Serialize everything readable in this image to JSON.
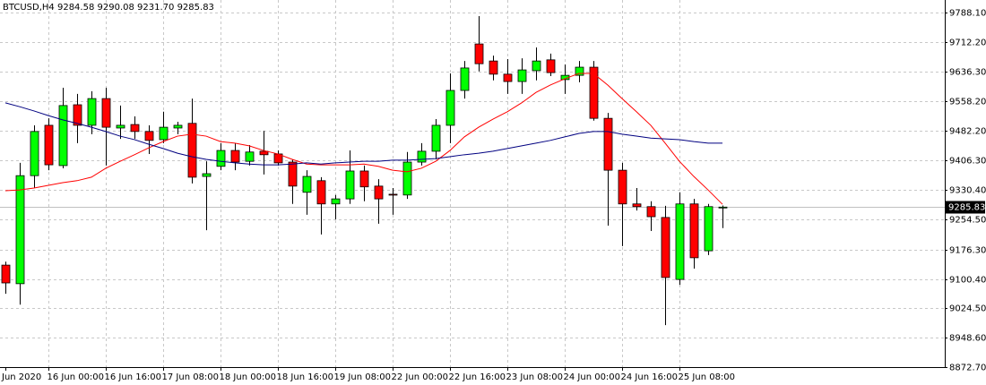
{
  "chart_data": {
    "type": "candlestick",
    "title": "BTCUSD,H4  9284.58 9290.08 9231.70 9285.83",
    "x": [
      "Jun 2020",
      null,
      null,
      "16 Jun 00:00",
      null,
      null,
      null,
      "16 Jun 16:00",
      null,
      null,
      null,
      "17 Jun 08:00",
      null,
      null,
      null,
      "18 Jun 00:00",
      null,
      null,
      null,
      "18 Jun 16:00",
      null,
      null,
      null,
      "19 Jun 08:00",
      null,
      null,
      null,
      "22 Jun 00:00",
      null,
      null,
      null,
      "22 Jun 16:00",
      null,
      null,
      null,
      "23 Jun 08:00",
      null,
      null,
      null,
      "24 Jun 00:00",
      null,
      null,
      null,
      "24 Jun 16:00",
      null,
      null,
      null,
      "25 Jun 08:00",
      null,
      null,
      null
    ],
    "open": [
      9136,
      9088,
      9367,
      9497,
      9393,
      9550,
      9497,
      9566,
      9490,
      9499,
      9481,
      9460,
      9490,
      9502,
      9365,
      9391,
      9432,
      9404,
      9430,
      9423,
      9402,
      9324,
      9354,
      9294,
      9307,
      9379,
      9340,
      9319,
      9317,
      9402,
      9430,
      9497,
      9587,
      9707,
      9663,
      9629,
      9610,
      9638,
      9666,
      9615,
      9626,
      9647,
      9515,
      9381,
      9294,
      9287,
      9259,
      9099,
      9294,
      9173,
      9284.58
    ],
    "high": [
      9145,
      9400,
      9497,
      9515,
      9594,
      9578,
      9585,
      9594,
      9548,
      9520,
      9497,
      9532,
      9506,
      9566,
      9404,
      9451,
      9451,
      9446,
      9483,
      9432,
      9409,
      9381,
      9363,
      9317,
      9432,
      9393,
      9358,
      9335,
      9428,
      9451,
      9513,
      9631,
      9663,
      9779,
      9677,
      9668,
      9670,
      9698,
      9682,
      9654,
      9663,
      9663,
      9529,
      9400,
      9335,
      9301,
      9289,
      9324,
      9307,
      9294,
      9290.08
    ],
    "low": [
      9062,
      9034,
      9335,
      9381,
      9386,
      9451,
      9474,
      9393,
      9462,
      9462,
      9423,
      9451,
      9474,
      9347,
      9226,
      9381,
      9381,
      9393,
      9370,
      9393,
      9294,
      9266,
      9215,
      9254,
      9294,
      9301,
      9243,
      9266,
      9307,
      9393,
      9409,
      9451,
      9566,
      9636,
      9613,
      9578,
      9578,
      9613,
      9624,
      9578,
      9608,
      9509,
      9238,
      9185,
      9277,
      9224,
      8981,
      9085,
      9127,
      9162,
      9231.7
    ],
    "close": [
      9090,
      9367,
      9481,
      9395,
      9548,
      9497,
      9566,
      9492,
      9497,
      9481,
      9458,
      9492,
      9497,
      9363,
      9372,
      9432,
      9402,
      9428,
      9421,
      9400,
      9340,
      9365,
      9294,
      9307,
      9379,
      9338,
      9307,
      9317,
      9402,
      9430,
      9497,
      9587,
      9645,
      9656,
      9629,
      9610,
      9640,
      9663,
      9633,
      9626,
      9647,
      9515,
      9381,
      9294,
      9287,
      9261,
      9104,
      9294,
      9155,
      9287,
      9285.83
    ],
    "up_color": "#00ff00",
    "down_color": "#ff0000",
    "series": [
      {
        "color": "#ff0000",
        "values": [
          9328,
          9330,
          9335,
          9342,
          9349,
          9354,
          9363,
          9386,
          9404,
          9421,
          9439,
          9455,
          9469,
          9474,
          9469,
          9455,
          9451,
          9444,
          9432,
          9423,
          9409,
          9397,
          9395,
          9395,
          9395,
          9397,
          9391,
          9381,
          9377,
          9386,
          9404,
          9432,
          9467,
          9492,
          9513,
          9532,
          9555,
          9582,
          9601,
          9617,
          9631,
          9631,
          9601,
          9566,
          9532,
          9497,
          9451,
          9404,
          9365,
          9330,
          9293
        ]
      },
      {
        "color": "#000080",
        "values": [
          9555,
          9545,
          9534,
          9522,
          9511,
          9502,
          9492,
          9481,
          9469,
          9460,
          9448,
          9437,
          9425,
          9416,
          9409,
          9404,
          9400,
          9397,
          9395,
          9395,
          9397,
          9400,
          9397,
          9400,
          9402,
          9404,
          9404,
          9407,
          9407,
          9409,
          9411,
          9416,
          9421,
          9425,
          9430,
          9437,
          9444,
          9451,
          9458,
          9467,
          9476,
          9481,
          9481,
          9474,
          9469,
          9464,
          9462,
          9460,
          9455,
          9451,
          9451
        ]
      }
    ],
    "ylim": [
      8872.7,
      9820.5
    ],
    "yticks": [
      {
        "value": 9788.1,
        "label": "9788.10"
      },
      {
        "value": 9712.2,
        "label": "9712.20"
      },
      {
        "value": 9636.3,
        "label": "9636.30"
      },
      {
        "value": 9558.2,
        "label": "9558.20"
      },
      {
        "value": 9482.2,
        "label": "9482.20"
      },
      {
        "value": 9406.3,
        "label": "9406.30"
      },
      {
        "value": 9330.4,
        "label": "9330.40"
      },
      {
        "value": 9254.5,
        "label": "9254.50"
      },
      {
        "value": 9176.3,
        "label": "9176.30"
      },
      {
        "value": 9100.4,
        "label": "9100.40"
      },
      {
        "value": 9024.5,
        "label": "9024.50"
      },
      {
        "value": 8948.6,
        "label": "8948.60"
      },
      {
        "value": 8872.7,
        "label": "8872.70"
      }
    ],
    "grid": true
  }
}
